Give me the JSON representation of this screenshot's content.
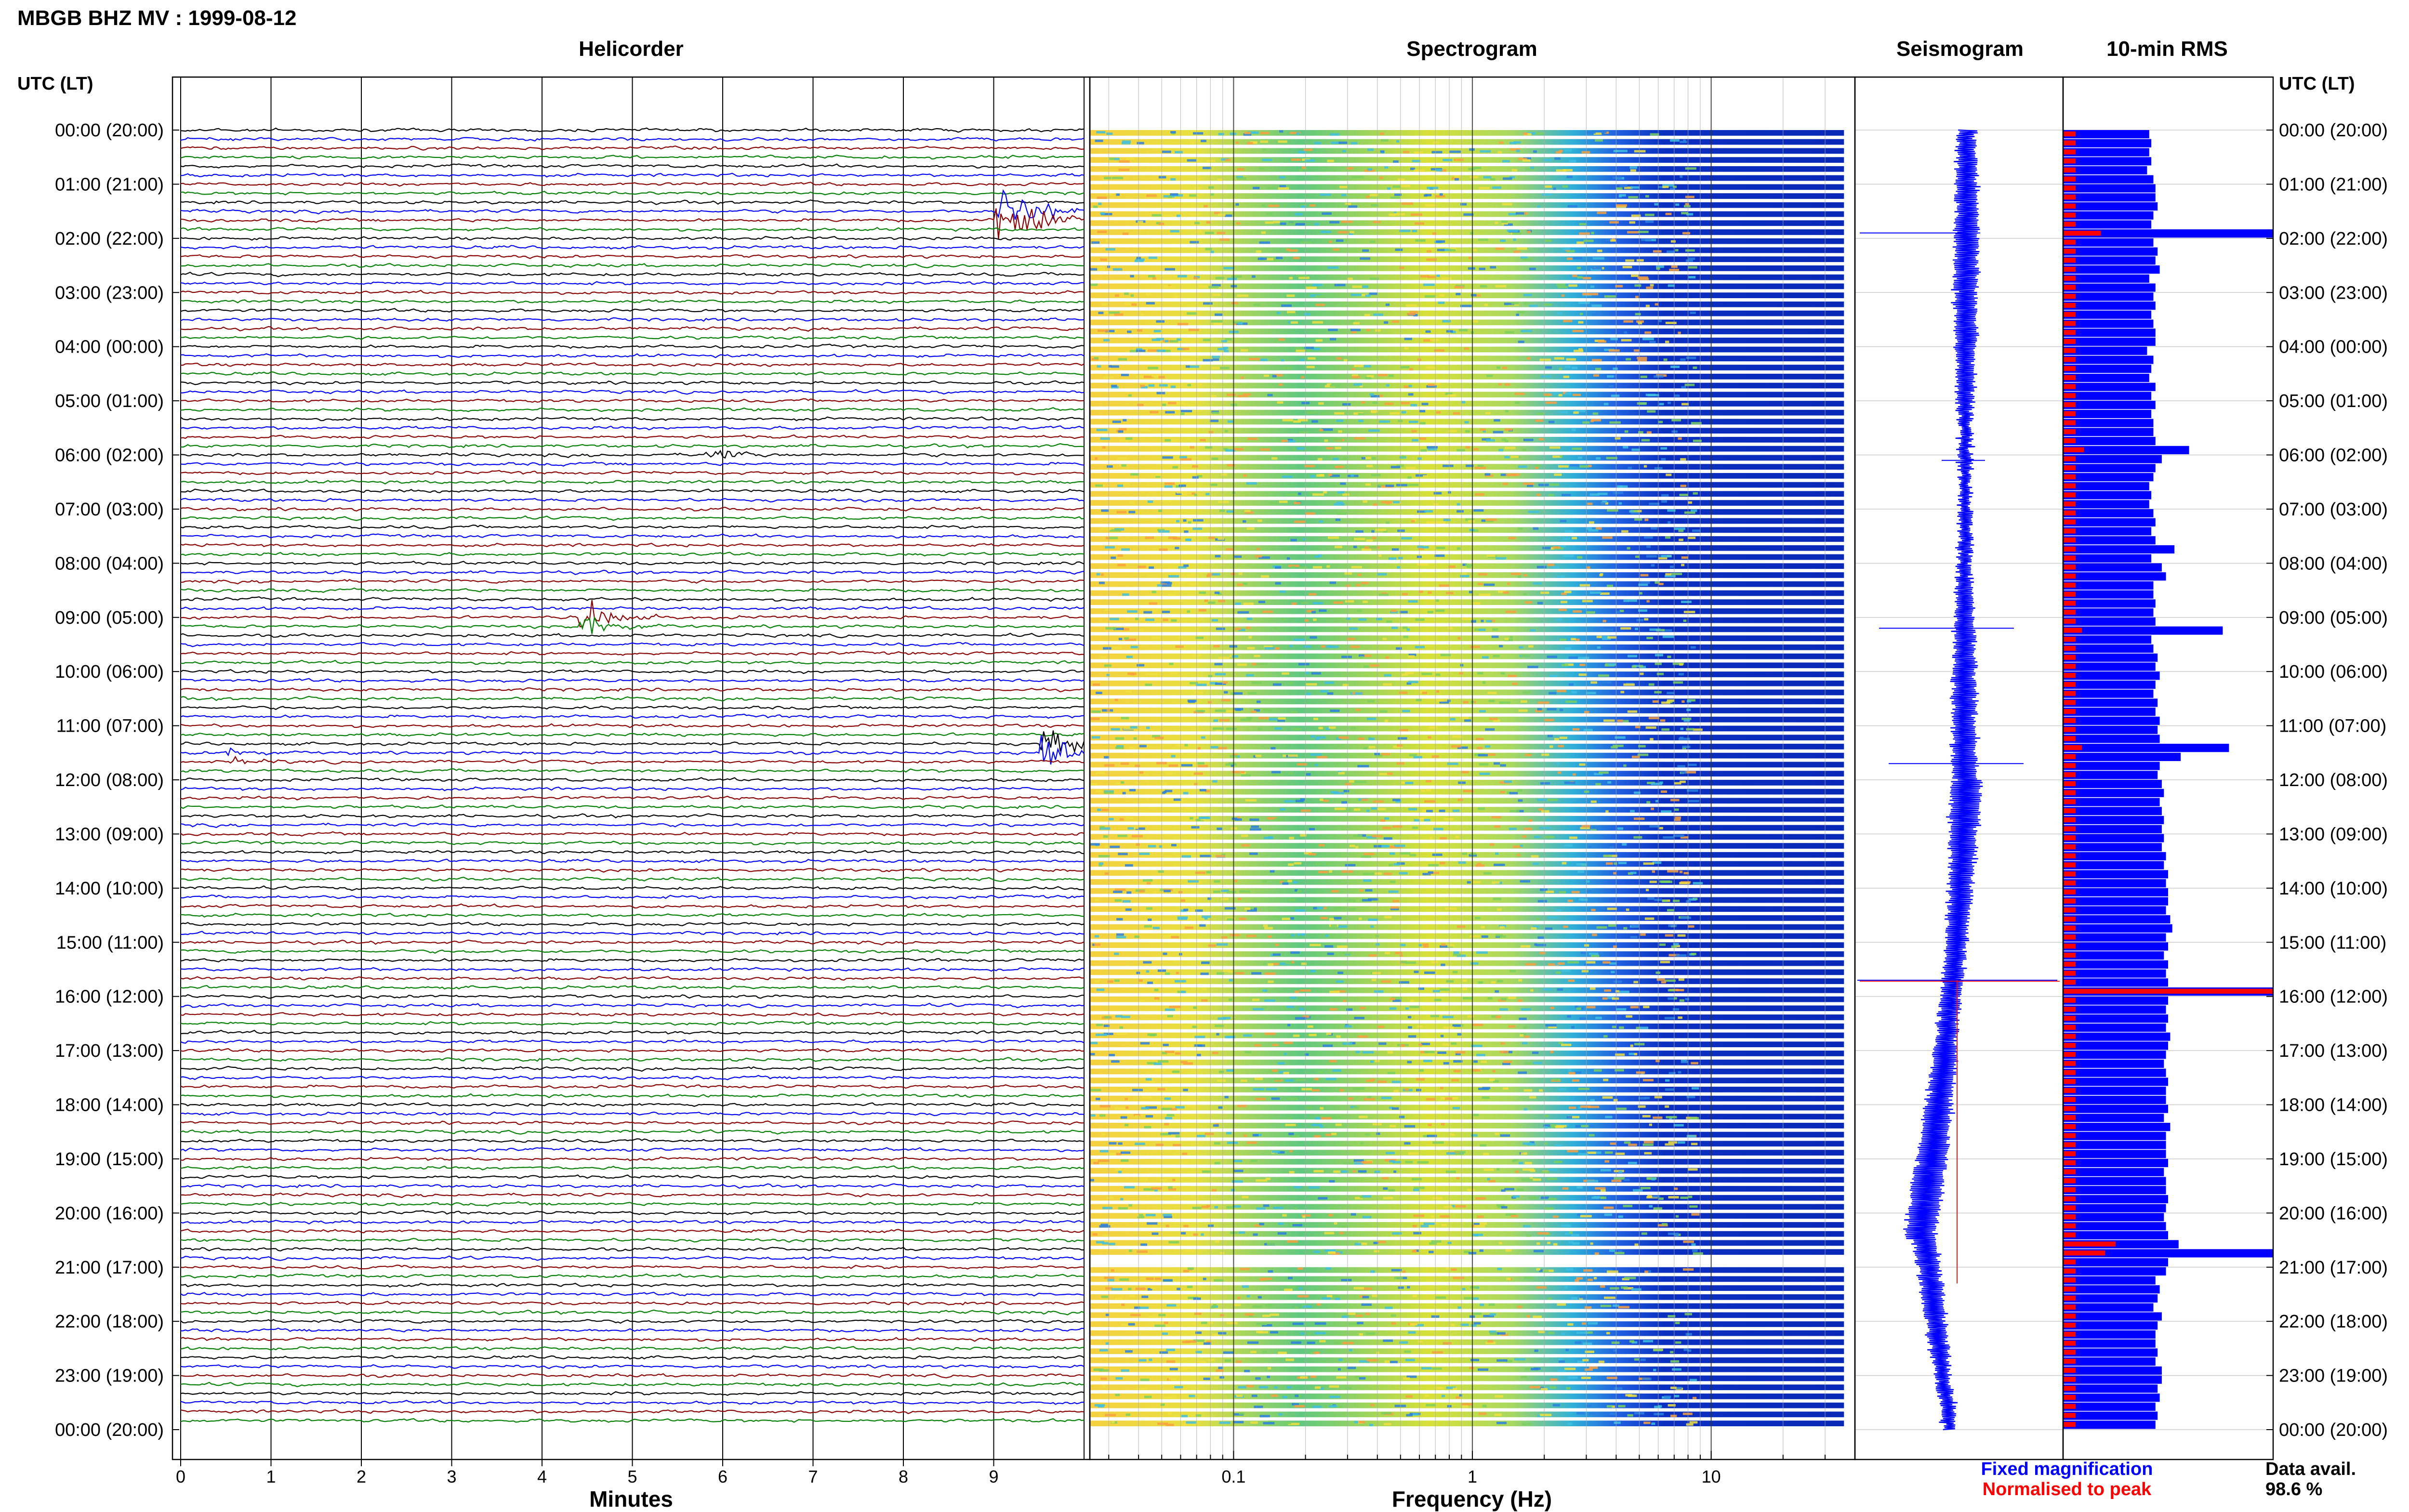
{
  "title": "MBGB BHZ MV : 1999-08-12",
  "panels": {
    "helicorder": "Helicorder",
    "spectrogram": "Spectrogram",
    "seismogram": "Seismogram",
    "rms": "10-min RMS"
  },
  "axis_labels": {
    "left_header": "UTC (LT)",
    "right_header": "UTC (LT)",
    "helicorder_x": "Minutes",
    "spectrogram_x": "Frequency (Hz)"
  },
  "legend": {
    "fixed": "Fixed magnification",
    "normalised": "Normalised to peak",
    "fixed_color": "#0000ff",
    "normalised_color": "#ff0000"
  },
  "data_avail": {
    "label": "Data avail.",
    "value": "98.6 %"
  },
  "chart_data": {
    "type": "multi-panel seismic summary",
    "time_ticks": [
      "00:00 (20:00)",
      "01:00 (21:00)",
      "02:00 (22:00)",
      "03:00 (23:00)",
      "04:00 (00:00)",
      "05:00 (01:00)",
      "06:00 (02:00)",
      "07:00 (03:00)",
      "08:00 (04:00)",
      "09:00 (05:00)",
      "10:00 (06:00)",
      "11:00 (07:00)",
      "12:00 (08:00)",
      "13:00 (09:00)",
      "14:00 (10:00)",
      "15:00 (11:00)",
      "16:00 (12:00)",
      "17:00 (13:00)",
      "18:00 (14:00)",
      "19:00 (15:00)",
      "20:00 (16:00)",
      "21:00 (17:00)",
      "22:00 (18:00)",
      "23:00 (19:00)",
      "00:00 (20:00)"
    ],
    "helicorder": {
      "xlabel": "Minutes",
      "x_ticks": [
        "0",
        "1",
        "2",
        "3",
        "4",
        "5",
        "6",
        "7",
        "8",
        "9"
      ],
      "xlim": [
        0,
        10
      ],
      "rows_per_hour": 6,
      "trace_colors": [
        "#000000",
        "#0000ff",
        "#8b0000",
        "#008000"
      ],
      "events": [
        {
          "hour": 1.6,
          "minute": 9.1,
          "amplitude": 3.5,
          "color": "#008000"
        },
        {
          "hour": 9.1,
          "minute": 4.5,
          "amplitude": 1.4,
          "color": "#008000"
        },
        {
          "hour": 11.4,
          "minute": 9.6,
          "amplitude": 1.6,
          "color": "#8b0000"
        },
        {
          "hour": 6.0,
          "minute": 5.9,
          "amplitude": 0.6,
          "color": "#8b0000"
        },
        {
          "hour": 11.6,
          "minute": 0.6,
          "amplitude": 0.5,
          "color": "#0000ff"
        }
      ]
    },
    "spectrogram": {
      "xlabel": "Frequency (Hz)",
      "x_ticks": [
        "0.1",
        "1",
        "10"
      ],
      "xscale": "log",
      "xlim": [
        0.025,
        40
      ],
      "gap_hours": [
        20.7,
        20.95
      ]
    },
    "seismogram": {
      "series": [
        {
          "name": "Fixed magnification",
          "color": "#0000ff"
        },
        {
          "name": "Normalised to peak",
          "color": "#ff0000"
        }
      ]
    },
    "rms": {
      "interval_minutes": 10,
      "bars": [
        0.41,
        0.42,
        0.41,
        0.42,
        0.4,
        0.43,
        0.44,
        0.44,
        0.45,
        0.43,
        0.42,
        1.0,
        0.43,
        0.45,
        0.44,
        0.46,
        0.41,
        0.44,
        0.43,
        0.44,
        0.42,
        0.43,
        0.44,
        0.44,
        0.4,
        0.43,
        0.42,
        0.41,
        0.44,
        0.42,
        0.44,
        0.42,
        0.43,
        0.43,
        0.44,
        0.6,
        0.47,
        0.44,
        0.43,
        0.41,
        0.42,
        0.41,
        0.43,
        0.44,
        0.42,
        0.44,
        0.53,
        0.42,
        0.47,
        0.49,
        0.43,
        0.43,
        0.44,
        0.43,
        0.44,
        0.76,
        0.42,
        0.43,
        0.45,
        0.44,
        0.46,
        0.44,
        0.43,
        0.45,
        0.44,
        0.46,
        0.45,
        0.46,
        0.79,
        0.56,
        0.46,
        0.45,
        0.47,
        0.48,
        0.46,
        0.47,
        0.48,
        0.47,
        0.48,
        0.47,
        0.49,
        0.48,
        0.5,
        0.49,
        0.5,
        0.5,
        0.49,
        0.51,
        0.52,
        0.49,
        0.5,
        0.48,
        0.5,
        0.49,
        0.5,
        1.0,
        0.5,
        0.49,
        0.5,
        0.49,
        0.51,
        0.5,
        0.49,
        0.48,
        0.49,
        0.5,
        0.49,
        0.49,
        0.5,
        0.48,
        0.51,
        0.49,
        0.49,
        0.49,
        0.5,
        0.48,
        0.49,
        0.49,
        0.5,
        0.49,
        0.48,
        0.49,
        0.5,
        0.55,
        1.0,
        0.5,
        0.49,
        0.44,
        0.46,
        0.45,
        0.43,
        0.47,
        0.45,
        0.44,
        0.44,
        0.45,
        0.44,
        0.47,
        0.47,
        0.45,
        0.46,
        0.44,
        0.45,
        0.44
      ],
      "normalised": [
        0.06,
        0.06,
        0.06,
        0.06,
        0.06,
        0.06,
        0.06,
        0.06,
        0.06,
        0.06,
        0.06,
        0.18,
        0.06,
        0.06,
        0.06,
        0.06,
        0.06,
        0.06,
        0.06,
        0.06,
        0.06,
        0.06,
        0.06,
        0.06,
        0.06,
        0.06,
        0.06,
        0.06,
        0.06,
        0.06,
        0.06,
        0.06,
        0.06,
        0.06,
        0.06,
        0.1,
        0.06,
        0.06,
        0.06,
        0.06,
        0.06,
        0.06,
        0.06,
        0.06,
        0.06,
        0.06,
        0.06,
        0.06,
        0.06,
        0.06,
        0.06,
        0.06,
        0.06,
        0.06,
        0.06,
        0.09,
        0.06,
        0.06,
        0.06,
        0.06,
        0.06,
        0.06,
        0.06,
        0.06,
        0.06,
        0.06,
        0.06,
        0.06,
        0.09,
        0.06,
        0.06,
        0.06,
        0.06,
        0.06,
        0.06,
        0.06,
        0.06,
        0.06,
        0.06,
        0.06,
        0.06,
        0.06,
        0.06,
        0.06,
        0.06,
        0.06,
        0.06,
        0.06,
        0.06,
        0.06,
        0.06,
        0.06,
        0.06,
        0.06,
        0.06,
        1.0,
        0.06,
        0.06,
        0.06,
        0.06,
        0.06,
        0.06,
        0.06,
        0.06,
        0.06,
        0.06,
        0.06,
        0.06,
        0.06,
        0.06,
        0.06,
        0.06,
        0.06,
        0.06,
        0.06,
        0.06,
        0.06,
        0.06,
        0.06,
        0.06,
        0.06,
        0.06,
        0.06,
        0.25,
        0.2,
        0.06,
        0.06,
        0.06,
        0.06,
        0.06,
        0.06,
        0.06,
        0.06,
        0.06,
        0.06,
        0.06,
        0.06,
        0.06,
        0.06,
        0.06,
        0.06,
        0.06,
        0.06,
        0.06
      ]
    }
  }
}
